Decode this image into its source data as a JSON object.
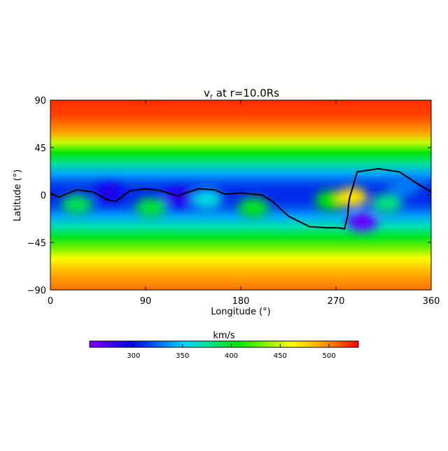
{
  "chart_data": {
    "type": "heatmap",
    "title_main": "v",
    "title_sub": "r",
    "title_rest": " at r=10.0Rs",
    "xlabel": "Longitude (°)",
    "ylabel": "Latitude (°)",
    "xlim": [
      0,
      360
    ],
    "ylim": [
      -90,
      90
    ],
    "x_ticks": [
      0,
      90,
      180,
      270,
      360
    ],
    "y_ticks": [
      90,
      45,
      0,
      -45,
      -90
    ],
    "y_tick_labels": [
      "90",
      "45",
      "0",
      "−45",
      "−90"
    ],
    "grid": false,
    "colorbar": {
      "label": "km/s",
      "range": [
        255,
        530
      ],
      "ticks": [
        300,
        350,
        400,
        450,
        500
      ],
      "colormap": "rainbow"
    },
    "background_field": {
      "lat": [
        90,
        75,
        60,
        50,
        40,
        30,
        20,
        12,
        5,
        -5,
        -12,
        -20,
        -30,
        -40,
        -50,
        -60,
        -75,
        -90
      ],
      "speed": [
        520,
        515,
        495,
        450,
        405,
        375,
        340,
        320,
        310,
        310,
        320,
        340,
        370,
        400,
        430,
        460,
        490,
        505
      ]
    },
    "features": [
      {
        "lon": 25,
        "lat": -9,
        "speed": 390
      },
      {
        "lon": 95,
        "lat": -12,
        "speed": 395
      },
      {
        "lon": 148,
        "lat": -4,
        "speed": 360
      },
      {
        "lon": 192,
        "lat": -12,
        "speed": 400
      },
      {
        "lon": 265,
        "lat": -5,
        "speed": 405
      },
      {
        "lon": 285,
        "lat": -2,
        "speed": 470
      },
      {
        "lon": 318,
        "lat": -8,
        "speed": 380
      },
      {
        "lon": 295,
        "lat": -25,
        "speed": 265
      },
      {
        "lon": 120,
        "lat": -2,
        "speed": 285
      },
      {
        "lon": 55,
        "lat": 2,
        "speed": 290
      },
      {
        "lon": 335,
        "lat": 8,
        "speed": 330
      }
    ],
    "neutral_line": {
      "lon": [
        0,
        8,
        15,
        25,
        40,
        55,
        62,
        75,
        90,
        105,
        120,
        128,
        140,
        155,
        165,
        180,
        200,
        210,
        225,
        245,
        262,
        272,
        278,
        281,
        282,
        283,
        286,
        290,
        310,
        330,
        345,
        360
      ],
      "lat": [
        2,
        -2,
        1,
        5,
        3,
        -5,
        -6,
        4,
        6,
        4,
        -1,
        2,
        6,
        5,
        1,
        2,
        0,
        -6,
        -20,
        -30,
        -31,
        -31,
        -32,
        -20,
        -8,
        -2,
        8,
        22,
        25,
        22,
        12,
        3
      ]
    }
  }
}
